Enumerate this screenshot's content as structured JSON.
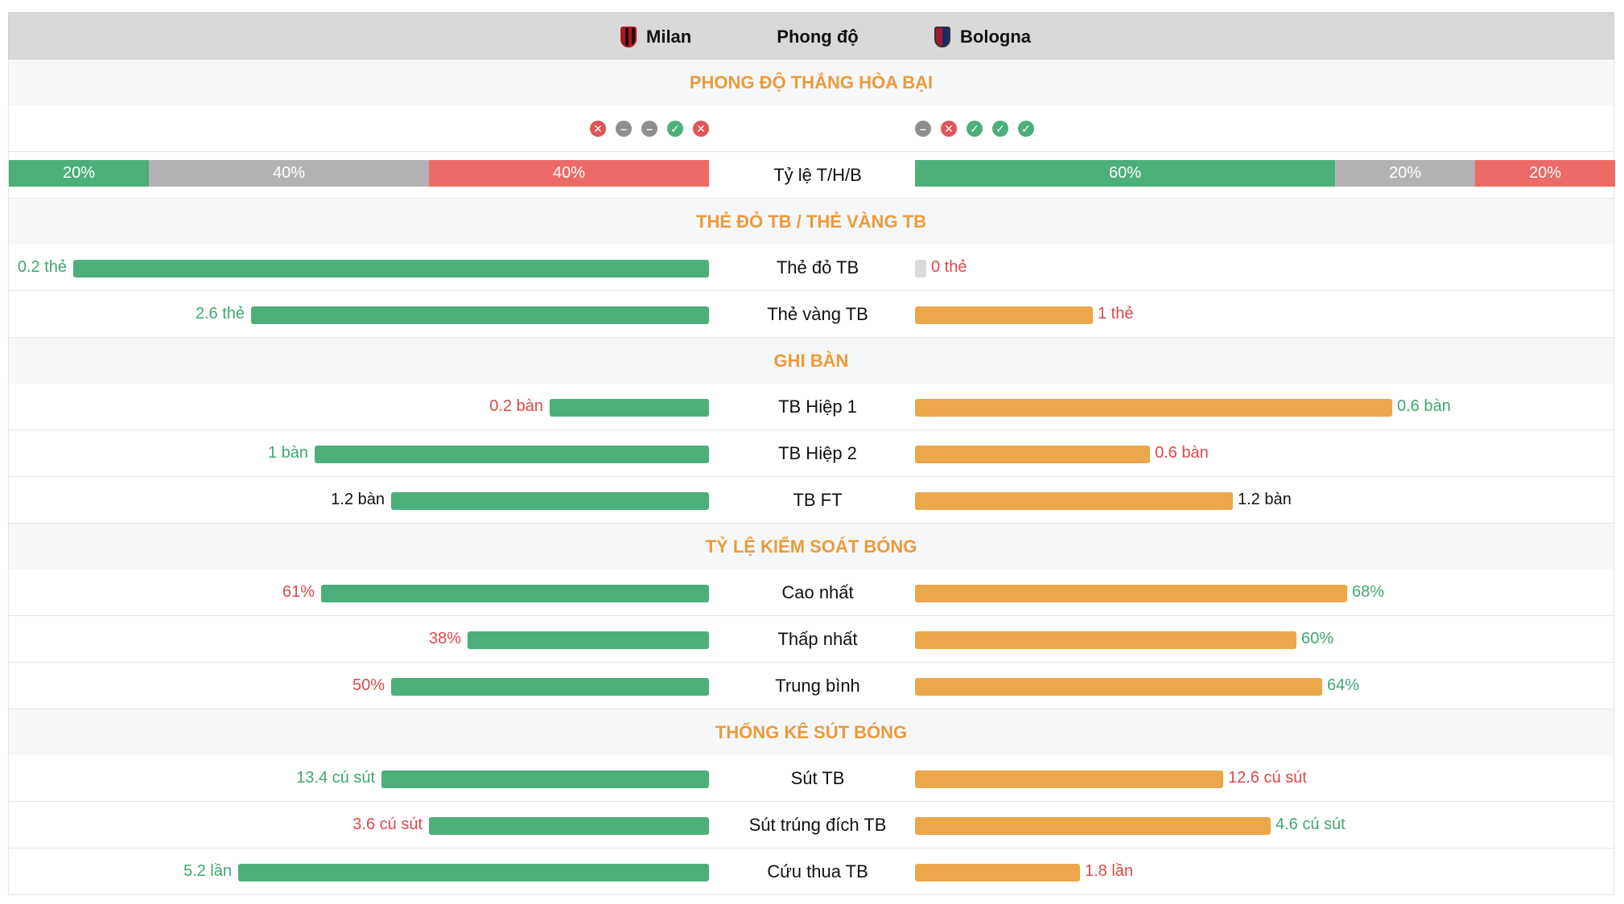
{
  "header": {
    "home": "Milan",
    "middle": "Phong độ",
    "away": "Bologna"
  },
  "sections": {
    "form": "PHONG ĐỘ THẮNG HÒA BẠI",
    "cards": "THẺ ĐỎ TB / THẺ VÀNG TB",
    "goals": "GHI BÀN",
    "possession": "TỶ LỆ KIỂM SOÁT BÓNG",
    "shots": "THỐNG KÊ SÚT BÓNG"
  },
  "form": {
    "home": [
      "loss",
      "draw",
      "draw",
      "win",
      "loss"
    ],
    "away": [
      "draw",
      "loss",
      "win",
      "win",
      "win"
    ]
  },
  "ratio": {
    "label": "Tỷ lệ T/H/B",
    "home": [
      {
        "key": "w",
        "value": 20,
        "text": "20%"
      },
      {
        "key": "d",
        "value": 40,
        "text": "40%"
      },
      {
        "key": "l",
        "value": 40,
        "text": "40%"
      }
    ],
    "away": [
      {
        "key": "w",
        "value": 60,
        "text": "60%"
      },
      {
        "key": "d",
        "value": 20,
        "text": "20%"
      },
      {
        "key": "l",
        "value": 20,
        "text": "20%"
      }
    ]
  },
  "stats": {
    "red_cards": {
      "label": "Thẻ đỏ TB",
      "home": {
        "text": "0.2 thẻ",
        "frac": 1.0,
        "color": "green"
      },
      "away": {
        "text": "0 thẻ",
        "frac": 0.0,
        "color": "red"
      }
    },
    "yellow_cards": {
      "label": "Thẻ vàng TB",
      "home": {
        "text": "2.6 thẻ",
        "frac": 0.72,
        "color": "green"
      },
      "away": {
        "text": "1 thẻ",
        "frac": 0.28,
        "color": "red"
      }
    },
    "half1": {
      "label": "TB Hiệp 1",
      "home": {
        "text": "0.2 bàn",
        "frac": 0.25,
        "color": "red"
      },
      "away": {
        "text": "0.6 bàn",
        "frac": 0.75,
        "color": "green"
      }
    },
    "half2": {
      "label": "TB Hiệp 2",
      "home": {
        "text": "1 bàn",
        "frac": 0.62,
        "color": "green"
      },
      "away": {
        "text": "0.6 bàn",
        "frac": 0.37,
        "color": "red"
      }
    },
    "ft": {
      "label": "TB FT",
      "home": {
        "text": "1.2 bàn",
        "frac": 0.5,
        "color": "black"
      },
      "away": {
        "text": "1.2 bàn",
        "frac": 0.5,
        "color": "black"
      }
    },
    "pos_high": {
      "label": "Cao nhất",
      "home": {
        "text": "61%",
        "frac": 0.61,
        "color": "red"
      },
      "away": {
        "text": "68%",
        "frac": 0.68,
        "color": "green"
      }
    },
    "pos_low": {
      "label": "Thấp nhất",
      "home": {
        "text": "38%",
        "frac": 0.38,
        "color": "red"
      },
      "away": {
        "text": "60%",
        "frac": 0.6,
        "color": "green"
      }
    },
    "pos_avg": {
      "label": "Trung bình",
      "home": {
        "text": "50%",
        "frac": 0.5,
        "color": "red"
      },
      "away": {
        "text": "64%",
        "frac": 0.64,
        "color": "green"
      }
    },
    "shots": {
      "label": "Sút TB",
      "home": {
        "text": "13.4 cú sút",
        "frac": 0.515,
        "color": "green"
      },
      "away": {
        "text": "12.6 cú sút",
        "frac": 0.485,
        "color": "red"
      }
    },
    "shots_on": {
      "label": "Sút trúng đích TB",
      "home": {
        "text": "3.6 cú sút",
        "frac": 0.44,
        "color": "red"
      },
      "away": {
        "text": "4.6 cú sút",
        "frac": 0.56,
        "color": "green"
      }
    },
    "saves": {
      "label": "Cứu thua TB",
      "home": {
        "text": "5.2 lần",
        "frac": 0.74,
        "color": "green"
      },
      "away": {
        "text": "1.8 lần",
        "frac": 0.26,
        "color": "red"
      }
    }
  },
  "colors": {
    "home_bar": "#4caf7a",
    "away_bar": "#eba74a",
    "section_title": "#ec9a3a",
    "win": "#4caf7a",
    "draw": "#b3b3b3",
    "loss": "#ec6b66"
  }
}
